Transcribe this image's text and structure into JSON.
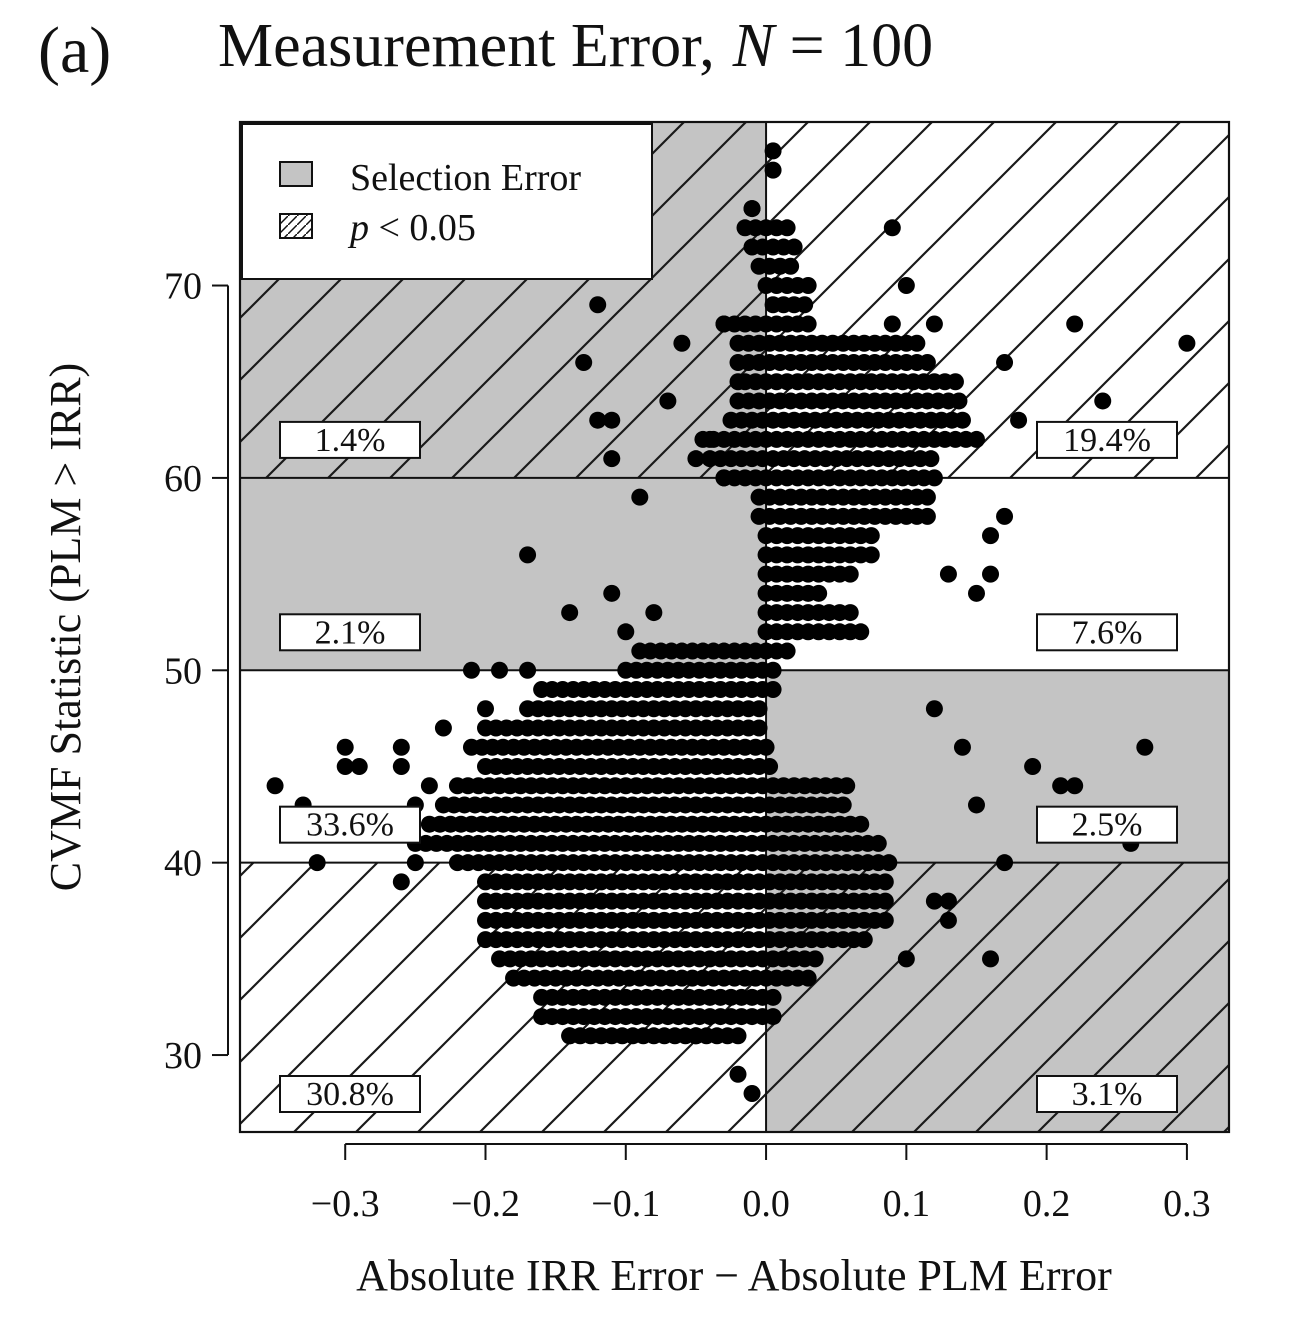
{
  "chart_data": {
    "type": "scatter",
    "panel_label": "(a)",
    "title": "Measurement Error,",
    "title_var": "N",
    "title_eq": " = 100",
    "xlabel": "Absolute IRR Error − Absolute PLM Error",
    "ylabel": "CVMF Statistic (PLM > IRR)",
    "xlim": [
      -0.375,
      0.33
    ],
    "ylim": [
      26,
      78.5
    ],
    "x_ticks": [
      -0.3,
      -0.2,
      -0.1,
      0.0,
      0.1,
      0.2,
      0.3
    ],
    "x_tick_labels": [
      "−0.3",
      "−0.2",
      "−0.1",
      "0.0",
      "0.1",
      "0.2",
      "0.3"
    ],
    "y_ticks": [
      30,
      40,
      50,
      60,
      70
    ],
    "y_tick_labels": [
      "30",
      "40",
      "50",
      "60",
      "70"
    ],
    "grid": false,
    "legend": {
      "position": "top-left",
      "entries": [
        {
          "label": "Selection Error",
          "style": "gray-fill"
        },
        {
          "label_var": "p",
          "label": " < 0.05",
          "style": "hatched"
        }
      ]
    },
    "colors": {
      "region_gray": "#c4c4c4",
      "points": "#000000",
      "hatch": "#1a1a1a"
    },
    "regions": [
      {
        "x": [
          -0.375,
          0.0
        ],
        "y": [
          60,
          78.5
        ],
        "gray": true,
        "hatched": true,
        "label": "1.4%"
      },
      {
        "x": [
          0.0,
          0.33
        ],
        "y": [
          60,
          78.5
        ],
        "gray": false,
        "hatched": true,
        "label": "19.4%"
      },
      {
        "x": [
          -0.375,
          0.0
        ],
        "y": [
          50,
          60
        ],
        "gray": true,
        "hatched": false,
        "label": "2.1%"
      },
      {
        "x": [
          0.0,
          0.33
        ],
        "y": [
          50,
          60
        ],
        "gray": false,
        "hatched": false,
        "label": "7.6%"
      },
      {
        "x": [
          -0.375,
          0.0
        ],
        "y": [
          40,
          50
        ],
        "gray": false,
        "hatched": false,
        "label": "33.6%"
      },
      {
        "x": [
          0.0,
          0.33
        ],
        "y": [
          40,
          50
        ],
        "gray": true,
        "hatched": false,
        "label": "2.5%"
      },
      {
        "x": [
          -0.375,
          0.0
        ],
        "y": [
          26,
          40
        ],
        "gray": false,
        "hatched": true,
        "label": "30.8%"
      },
      {
        "x": [
          0.0,
          0.33
        ],
        "y": [
          26,
          40
        ],
        "gray": true,
        "hatched": true,
        "label": "3.1%"
      }
    ],
    "dense_bands": [
      {
        "y": 77,
        "x": [
          0.005,
          0.01
        ]
      },
      {
        "y": 76,
        "x": [
          0.005,
          0.01
        ]
      },
      {
        "y": 74,
        "x": [
          -0.01,
          -0.01
        ]
      },
      {
        "y": 73,
        "x": [
          -0.015,
          0.015
        ]
      },
      {
        "y": 72,
        "x": [
          -0.01,
          0.02
        ]
      },
      {
        "y": 71,
        "x": [
          -0.005,
          0.02
        ]
      },
      {
        "y": 70,
        "x": [
          0.0,
          0.03
        ]
      },
      {
        "y": 69,
        "x": [
          0.005,
          0.03
        ]
      },
      {
        "y": 68,
        "x": [
          -0.03,
          0.03
        ]
      },
      {
        "y": 67,
        "x": [
          -0.02,
          0.11
        ]
      },
      {
        "y": 66,
        "x": [
          -0.02,
          0.12
        ]
      },
      {
        "y": 65,
        "x": [
          -0.015,
          0.14
        ]
      },
      {
        "y": 64,
        "x": [
          -0.02,
          0.14
        ]
      },
      {
        "y": 63,
        "x": [
          -0.025,
          0.14
        ]
      },
      {
        "y": 62,
        "x": [
          -0.045,
          0.15
        ]
      },
      {
        "y": 61,
        "x": [
          -0.04,
          0.12
        ]
      },
      {
        "y": 60,
        "x": [
          -0.03,
          0.12
        ]
      },
      {
        "y": 59,
        "x": [
          -0.005,
          0.12
        ]
      },
      {
        "y": 58,
        "x": [
          -0.005,
          0.12
        ]
      },
      {
        "y": 57,
        "x": [
          0.0,
          0.08
        ]
      },
      {
        "y": 56,
        "x": [
          0.0,
          0.075
        ]
      },
      {
        "y": 55,
        "x": [
          0.0,
          0.06
        ]
      },
      {
        "y": 54,
        "x": [
          0.0,
          0.04
        ]
      },
      {
        "y": 53,
        "x": [
          0.0,
          0.06
        ]
      },
      {
        "y": 52,
        "x": [
          0.0,
          0.07
        ]
      },
      {
        "y": 51,
        "x": [
          -0.09,
          0.02
        ]
      },
      {
        "y": 50,
        "x": [
          -0.1,
          0.01
        ]
      },
      {
        "y": 49,
        "x": [
          -0.16,
          0.01
        ]
      },
      {
        "y": 48,
        "x": [
          -0.17,
          0.0
        ]
      },
      {
        "y": 47,
        "x": [
          -0.2,
          0.0
        ]
      },
      {
        "y": 46,
        "x": [
          -0.21,
          0.0
        ]
      },
      {
        "y": 45,
        "x": [
          -0.2,
          0.005
        ]
      },
      {
        "y": 44,
        "x": [
          -0.22,
          0.06
        ]
      },
      {
        "y": 43,
        "x": [
          -0.23,
          0.06
        ]
      },
      {
        "y": 42,
        "x": [
          -0.24,
          0.07
        ]
      },
      {
        "y": 41,
        "x": [
          -0.25,
          0.08
        ]
      },
      {
        "y": 40,
        "x": [
          -0.22,
          0.09
        ]
      },
      {
        "y": 39,
        "x": [
          -0.2,
          0.09
        ]
      },
      {
        "y": 38,
        "x": [
          -0.2,
          0.09
        ]
      },
      {
        "y": 37,
        "x": [
          -0.2,
          0.09
        ]
      },
      {
        "y": 36,
        "x": [
          -0.2,
          0.07
        ]
      },
      {
        "y": 35,
        "x": [
          -0.19,
          0.04
        ]
      },
      {
        "y": 34,
        "x": [
          -0.18,
          0.03
        ]
      },
      {
        "y": 33,
        "x": [
          -0.16,
          0.01
        ]
      },
      {
        "y": 32,
        "x": [
          -0.16,
          0.01
        ]
      },
      {
        "y": 31,
        "x": [
          -0.14,
          -0.02
        ]
      }
    ],
    "points": [
      [
        -0.35,
        44
      ],
      [
        -0.32,
        40
      ],
      [
        -0.33,
        43
      ],
      [
        -0.3,
        46
      ],
      [
        -0.3,
        45
      ],
      [
        -0.29,
        45
      ],
      [
        -0.26,
        46
      ],
      [
        -0.26,
        45
      ],
      [
        -0.26,
        39
      ],
      [
        -0.25,
        40
      ],
      [
        -0.24,
        44
      ],
      [
        -0.25,
        43
      ],
      [
        -0.23,
        47
      ],
      [
        -0.21,
        50
      ],
      [
        -0.2,
        48
      ],
      [
        -0.19,
        50
      ],
      [
        -0.17,
        50
      ],
      [
        -0.17,
        56
      ],
      [
        -0.14,
        53
      ],
      [
        -0.11,
        54
      ],
      [
        -0.08,
        53
      ],
      [
        -0.1,
        52
      ],
      [
        -0.12,
        63
      ],
      [
        -0.11,
        61
      ],
      [
        -0.11,
        63
      ],
      [
        -0.12,
        69
      ],
      [
        -0.13,
        66
      ],
      [
        -0.09,
        59
      ],
      [
        -0.07,
        64
      ],
      [
        -0.06,
        67
      ],
      [
        -0.03,
        68
      ],
      [
        -0.02,
        65
      ],
      [
        -0.04,
        62
      ],
      [
        -0.05,
        61
      ],
      [
        -0.03,
        60
      ],
      [
        -0.01,
        74
      ],
      [
        0.09,
        73
      ],
      [
        0.1,
        70
      ],
      [
        0.09,
        68
      ],
      [
        0.12,
        68
      ],
      [
        0.17,
        66
      ],
      [
        0.18,
        63
      ],
      [
        0.17,
        58
      ],
      [
        0.16,
        55
      ],
      [
        0.15,
        54
      ],
      [
        0.13,
        55
      ],
      [
        0.16,
        57
      ],
      [
        0.22,
        68
      ],
      [
        0.24,
        64
      ],
      [
        0.3,
        67
      ],
      [
        0.12,
        48
      ],
      [
        0.14,
        46
      ],
      [
        0.19,
        45
      ],
      [
        0.21,
        44
      ],
      [
        0.22,
        44
      ],
      [
        0.27,
        46
      ],
      [
        0.26,
        41
      ],
      [
        0.17,
        40
      ],
      [
        0.15,
        43
      ],
      [
        0.16,
        35
      ],
      [
        0.12,
        38
      ],
      [
        0.13,
        37
      ],
      [
        0.13,
        38
      ],
      [
        0.1,
        35
      ],
      [
        -0.02,
        29
      ],
      [
        -0.01,
        28
      ],
      [
        -0.14,
        31
      ],
      [
        -0.05,
        31
      ]
    ]
  }
}
